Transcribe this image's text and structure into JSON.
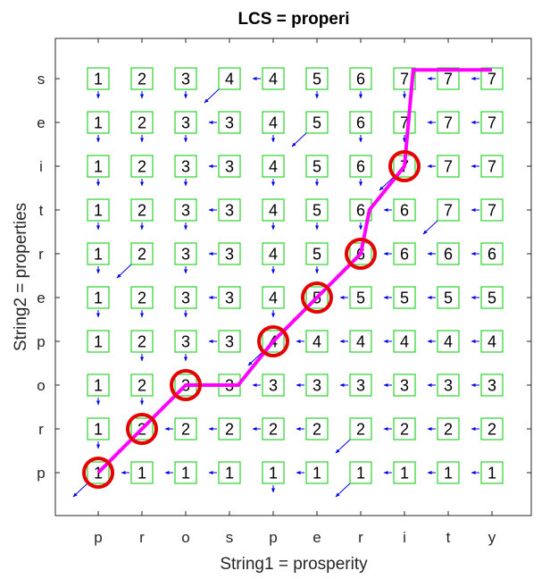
{
  "chart_data": {
    "type": "table",
    "title": "LCS = properi",
    "xlabel": "String1 = prosperity",
    "ylabel": "String2 = properties",
    "x_tick_labels": [
      "p",
      "r",
      "o",
      "s",
      "p",
      "e",
      "r",
      "i",
      "t",
      "y"
    ],
    "y_tick_labels": [
      "p",
      "r",
      "o",
      "p",
      "e",
      "r",
      "t",
      "i",
      "e",
      "s"
    ],
    "grid": false,
    "cells": [
      [
        1,
        1,
        1,
        1,
        1,
        1,
        1,
        1,
        1,
        1
      ],
      [
        1,
        2,
        2,
        2,
        2,
        2,
        2,
        2,
        2,
        2
      ],
      [
        1,
        2,
        3,
        3,
        3,
        3,
        3,
        3,
        3,
        3
      ],
      [
        1,
        2,
        3,
        3,
        4,
        4,
        4,
        4,
        4,
        4
      ],
      [
        1,
        2,
        3,
        3,
        4,
        5,
        5,
        5,
        5,
        5
      ],
      [
        1,
        2,
        3,
        3,
        4,
        5,
        6,
        6,
        6,
        6
      ],
      [
        1,
        2,
        3,
        3,
        4,
        5,
        6,
        6,
        7,
        7
      ],
      [
        1,
        2,
        3,
        3,
        4,
        5,
        6,
        7,
        7,
        7
      ],
      [
        1,
        2,
        3,
        3,
        4,
        5,
        6,
        7,
        7,
        7
      ],
      [
        1,
        2,
        3,
        4,
        4,
        5,
        6,
        7,
        7,
        7
      ]
    ],
    "arrows": [
      [
        "diag",
        "left",
        "left",
        "left",
        "up",
        "left",
        "diag",
        "left",
        "left",
        "left"
      ],
      [
        "up",
        "diag",
        "left",
        "left",
        "left",
        "left",
        "diag",
        "left",
        "left",
        "left"
      ],
      [
        "up",
        "up",
        "diag",
        "left",
        "left",
        "left",
        "left",
        "left",
        "left",
        "left"
      ],
      [
        "none",
        "up",
        "up",
        "left",
        "diag",
        "left",
        "left",
        "left",
        "left",
        "left"
      ],
      [
        "up",
        "up",
        "up",
        "left",
        "up",
        "diag",
        "left",
        "left",
        "left",
        "left"
      ],
      [
        "up",
        "diag",
        "up",
        "left",
        "up",
        "up",
        "diag",
        "left",
        "left",
        "left"
      ],
      [
        "up",
        "up",
        "up",
        "left",
        "up",
        "up",
        "up",
        "left",
        "diag",
        "left"
      ],
      [
        "up",
        "up",
        "up",
        "left",
        "up",
        "up",
        "up",
        "diag",
        "left",
        "left"
      ],
      [
        "up",
        "up",
        "up",
        "left",
        "up",
        "diag",
        "up",
        "up",
        "left",
        "left"
      ],
      [
        "up",
        "up",
        "up",
        "diag",
        "left",
        "up",
        "up",
        "up",
        "left",
        "left"
      ]
    ],
    "lcs_circles": [
      [
        0,
        0
      ],
      [
        1,
        1
      ],
      [
        2,
        2
      ],
      [
        3,
        4
      ],
      [
        4,
        5
      ],
      [
        5,
        6
      ],
      [
        7,
        7
      ]
    ],
    "path": [
      [
        0,
        0
      ],
      [
        1,
        1
      ],
      [
        2,
        2
      ],
      [
        2,
        3.2
      ],
      [
        3,
        4
      ],
      [
        4,
        5
      ],
      [
        5,
        6
      ],
      [
        6,
        6.2
      ],
      [
        7,
        7
      ],
      [
        9.2,
        7.2
      ],
      [
        9.2,
        9
      ]
    ],
    "colors": {
      "box": "#00c800",
      "arrow": "#0000e6",
      "path": "#ff00ff",
      "circle": "#e60000",
      "axes": "#262626"
    }
  }
}
